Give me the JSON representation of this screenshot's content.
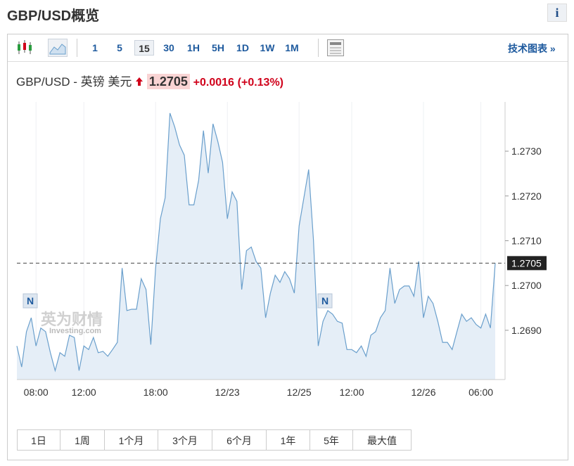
{
  "header": {
    "title": "GBP/USD概览",
    "info": "i"
  },
  "toolbar": {
    "timeframes": [
      "1",
      "5",
      "15",
      "30",
      "1H",
      "5H",
      "1D",
      "1W",
      "1M"
    ],
    "selected_timeframe": "15",
    "link": "技术图表 »"
  },
  "quote": {
    "pair": "GBP/USD - 英镑 美元",
    "price": "1.2705",
    "change": "+0.0016",
    "change_pct": "(+0.13%)"
  },
  "chart_data": {
    "type": "line",
    "color": "#6a9fcc",
    "fill_color": "#e5eef7",
    "categories": [
      null,
      null,
      null,
      null,
      "08:00",
      null,
      null,
      null,
      null,
      null,
      null,
      null,
      null,
      null,
      "12:00",
      null,
      null,
      null,
      null,
      null,
      null,
      null,
      null,
      null,
      null,
      null,
      null,
      null,
      null,
      "18:00",
      null,
      null,
      null,
      null,
      null,
      null,
      null,
      null,
      null,
      null,
      null,
      null,
      null,
      null,
      "12/23",
      null,
      null,
      null,
      null,
      null,
      null,
      null,
      null,
      null,
      null,
      null,
      null,
      null,
      null,
      "12/25",
      null,
      null,
      null,
      null,
      null,
      null,
      null,
      null,
      null,
      null,
      "12:00",
      null,
      null,
      null,
      null,
      null,
      null,
      null,
      null,
      null,
      null,
      null,
      null,
      null,
      null,
      "12/26",
      null,
      null,
      null,
      null,
      null,
      null,
      null,
      null,
      null,
      null,
      null,
      "06:00",
      null,
      null,
      null
    ],
    "values": [
      1.26865,
      1.26818,
      1.26897,
      1.26928,
      1.26865,
      1.26905,
      1.26897,
      1.2685,
      1.2681,
      1.2685,
      1.26842,
      1.26889,
      1.26884,
      1.2681,
      1.26865,
      1.26857,
      1.26884,
      1.2685,
      1.26853,
      1.26842,
      1.26857,
      1.26873,
      1.27039,
      1.26944,
      1.26947,
      1.26947,
      1.27015,
      1.26991,
      1.26868,
      1.27039,
      1.27149,
      1.27196,
      1.27385,
      1.27354,
      1.27314,
      1.27291,
      1.2718,
      1.2718,
      1.27235,
      1.27346,
      1.27251,
      1.27361,
      1.27322,
      1.27275,
      1.27149,
      1.27209,
      1.27188,
      1.26991,
      1.27078,
      1.27086,
      1.27054,
      1.27039,
      1.26928,
      1.26983,
      1.27023,
      1.27007,
      1.27031,
      1.27015,
      1.26983,
      1.27133,
      1.27196,
      1.27259,
      1.27102,
      1.26865,
      1.2692,
      1.26944,
      1.26936,
      1.2692,
      1.26916,
      1.26857,
      1.26857,
      1.2685,
      1.26865,
      1.26842,
      1.26889,
      1.26897,
      1.26928,
      1.26944,
      1.27039,
      1.2696,
      1.26991,
      1.26999,
      1.26999,
      1.26976,
      1.27054,
      1.26928,
      1.26976,
      1.2696,
      1.2692,
      1.26873,
      1.26873,
      1.26857,
      1.26897,
      1.26936,
      1.2692,
      1.26928,
      1.26913,
      1.26905,
      1.26936,
      1.26905,
      1.2705
    ],
    "ylim": [
      1.2679,
      1.2741
    ],
    "yticks": [
      {
        "value": 1.269,
        "label": "1.2690"
      },
      {
        "value": 1.27,
        "label": "1.2700"
      },
      {
        "value": 1.271,
        "label": "1.2710"
      },
      {
        "value": 1.272,
        "label": "1.2720"
      },
      {
        "value": 1.273,
        "label": "1.2730"
      }
    ],
    "current_line": 1.2705,
    "markers": [
      "N",
      "N"
    ],
    "watermark": {
      "name": "英为财情",
      "site": "Investing.com"
    }
  },
  "ranges": [
    "1日",
    "1周",
    "1个月",
    "3个月",
    "6个月",
    "1年",
    "5年",
    "最大值"
  ]
}
